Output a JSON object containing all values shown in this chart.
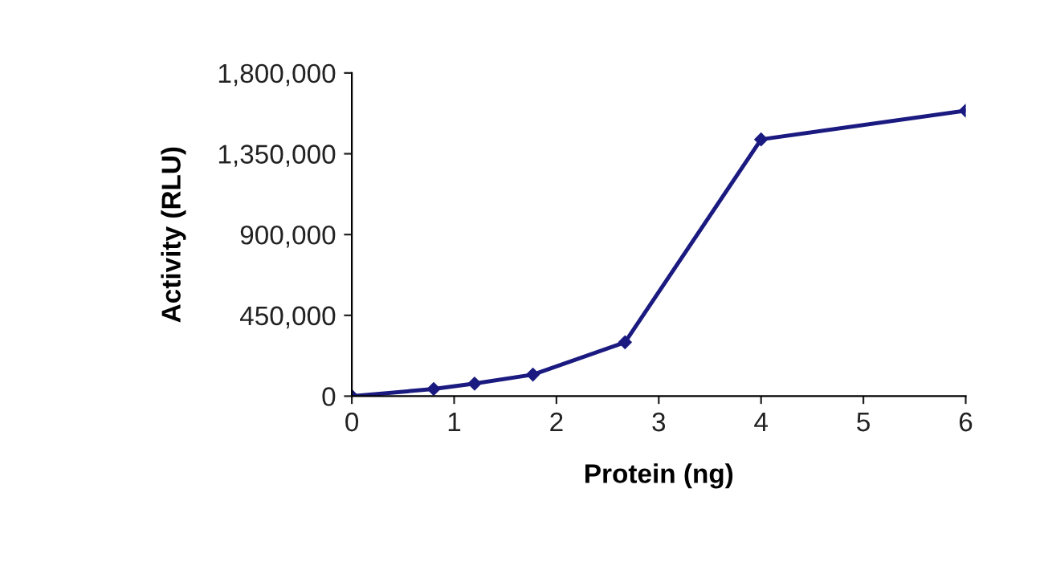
{
  "chart_data": {
    "type": "line",
    "xlabel": "Protein (ng)",
    "ylabel": "Activity (RLU)",
    "x": [
      0,
      0.8,
      1.2,
      1.77,
      2.67,
      4.0,
      6.0
    ],
    "series": [
      {
        "color": "#1a1a80",
        "values": [
          0,
          40000,
          70000,
          120000,
          300000,
          1430000,
          1590000
        ]
      }
    ],
    "xlim": [
      0,
      6
    ],
    "xticks": [
      0,
      1,
      2,
      3,
      4,
      5,
      6
    ],
    "ylim": [
      0,
      1800000
    ],
    "yticks": [
      0,
      {
        "value": 450000,
        "label": "450,000"
      },
      {
        "value": 900000,
        "label": "900,000"
      },
      {
        "value": 1350000,
        "label": "1,350,000"
      },
      {
        "value": 1800000,
        "label": "1,800,000"
      }
    ],
    "grid": false,
    "marker": "diamond",
    "line_style": "solid",
    "legend": false
  }
}
